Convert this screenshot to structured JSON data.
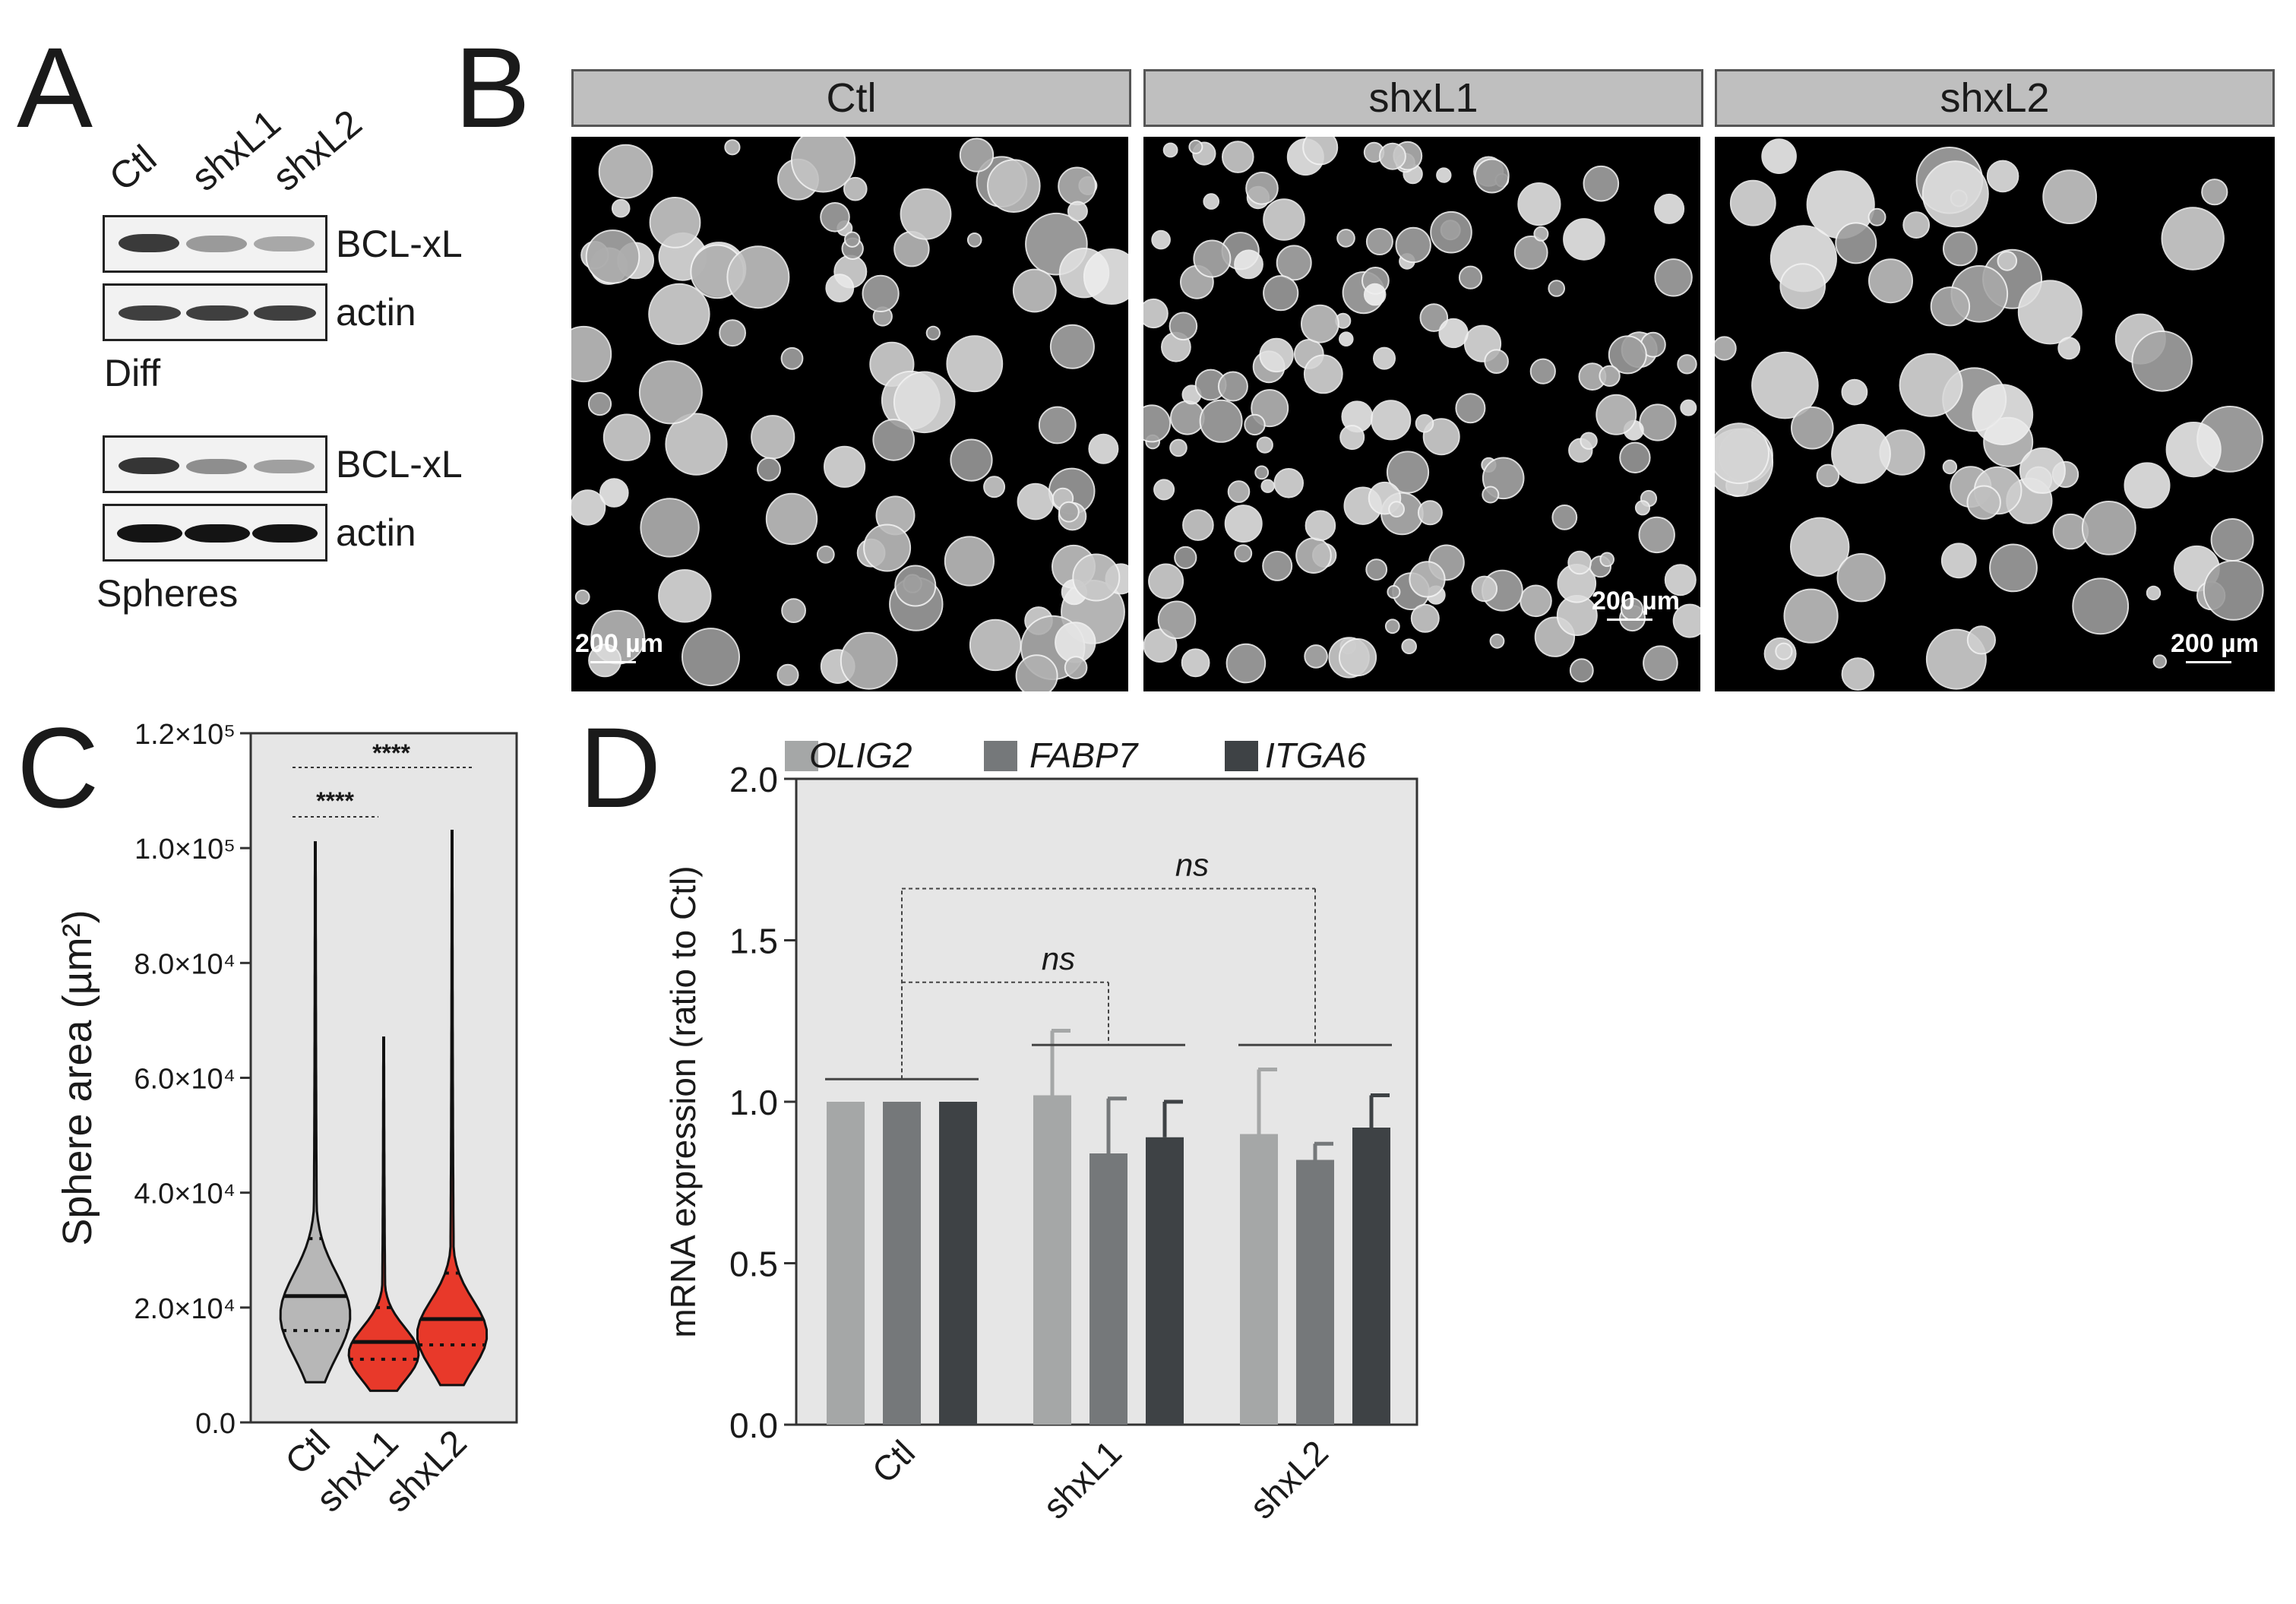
{
  "panel_letters": {
    "a": "A",
    "b": "B",
    "c": "C",
    "d": "D"
  },
  "panel_a": {
    "lanes": [
      "Ctl",
      "shxL1",
      "shxL2"
    ],
    "blots": [
      {
        "label": "BCL-xL",
        "intensity": [
          0.85,
          0.35,
          0.3
        ]
      },
      {
        "label": "actin",
        "intensity": [
          0.8,
          0.8,
          0.8
        ]
      },
      {
        "label": "BCL-xL",
        "intensity": [
          0.85,
          0.4,
          0.35
        ]
      },
      {
        "label": "actin",
        "intensity": [
          1.0,
          1.0,
          1.0
        ]
      }
    ],
    "group_labels": [
      "Diff",
      "Spheres"
    ]
  },
  "panel_b": {
    "headers": [
      "Ctl",
      "shxL1",
      "shxL2"
    ],
    "scale_bar": "200 µm"
  },
  "chart_data": [
    {
      "panel": "C",
      "type": "violin",
      "categories": [
        "Ctl",
        "shxL1",
        "shxL2"
      ],
      "ylabel": "Sphere area (µm²)",
      "ylim": [
        0,
        120000
      ],
      "yticks": [
        "0.0",
        "2.0×10⁴",
        "4.0×10⁴",
        "6.0×10⁴",
        "8.0×10⁴",
        "1.0×10⁵",
        "1.2×10⁵"
      ],
      "series": [
        {
          "category": "Ctl",
          "color": "#b7b7b7",
          "min": 7000,
          "max": 101000,
          "median": 22000,
          "q1": 16000,
          "q3": 32000
        },
        {
          "category": "shxL1",
          "color": "#e8392a",
          "min": 5500,
          "max": 67000,
          "median": 14000,
          "q1": 11000,
          "q3": 20000
        },
        {
          "category": "shxL2",
          "color": "#e8392a",
          "min": 6500,
          "max": 103000,
          "median": 18000,
          "q1": 13500,
          "q3": 26000
        }
      ],
      "significance": [
        {
          "from": "Ctl",
          "to": "shxL1",
          "label": "****"
        },
        {
          "from": "Ctl",
          "to": "shxL2",
          "label": "****"
        }
      ],
      "background": "#e6e6e6"
    },
    {
      "panel": "D",
      "type": "bar",
      "categories": [
        "Ctl",
        "shxL1",
        "shxL2"
      ],
      "ylabel": "mRNA expression (ratio to Ctl)",
      "ylim": [
        0,
        2.0
      ],
      "yticks": [
        "0.0",
        "0.5",
        "1.0",
        "1.5",
        "2.0"
      ],
      "series": [
        {
          "name": "OLIG2",
          "color": "#a5a7a7",
          "values": [
            1.0,
            1.02,
            0.9
          ],
          "errors": [
            0,
            0.2,
            0.2
          ]
        },
        {
          "name": "FABP7",
          "color": "#75787a",
          "values": [
            1.0,
            0.84,
            0.82
          ],
          "errors": [
            0,
            0.17,
            0.05
          ]
        },
        {
          "name": "ITGA6",
          "color": "#3e4245",
          "values": [
            1.0,
            0.89,
            0.92
          ],
          "errors": [
            0,
            0.11,
            0.1
          ]
        }
      ],
      "significance": [
        {
          "from": "Ctl",
          "to": "shxL1",
          "label": "ns"
        },
        {
          "from": "Ctl",
          "to": "shxL2",
          "label": "ns"
        }
      ],
      "legend": "top",
      "background": "#e6e6e6"
    }
  ]
}
